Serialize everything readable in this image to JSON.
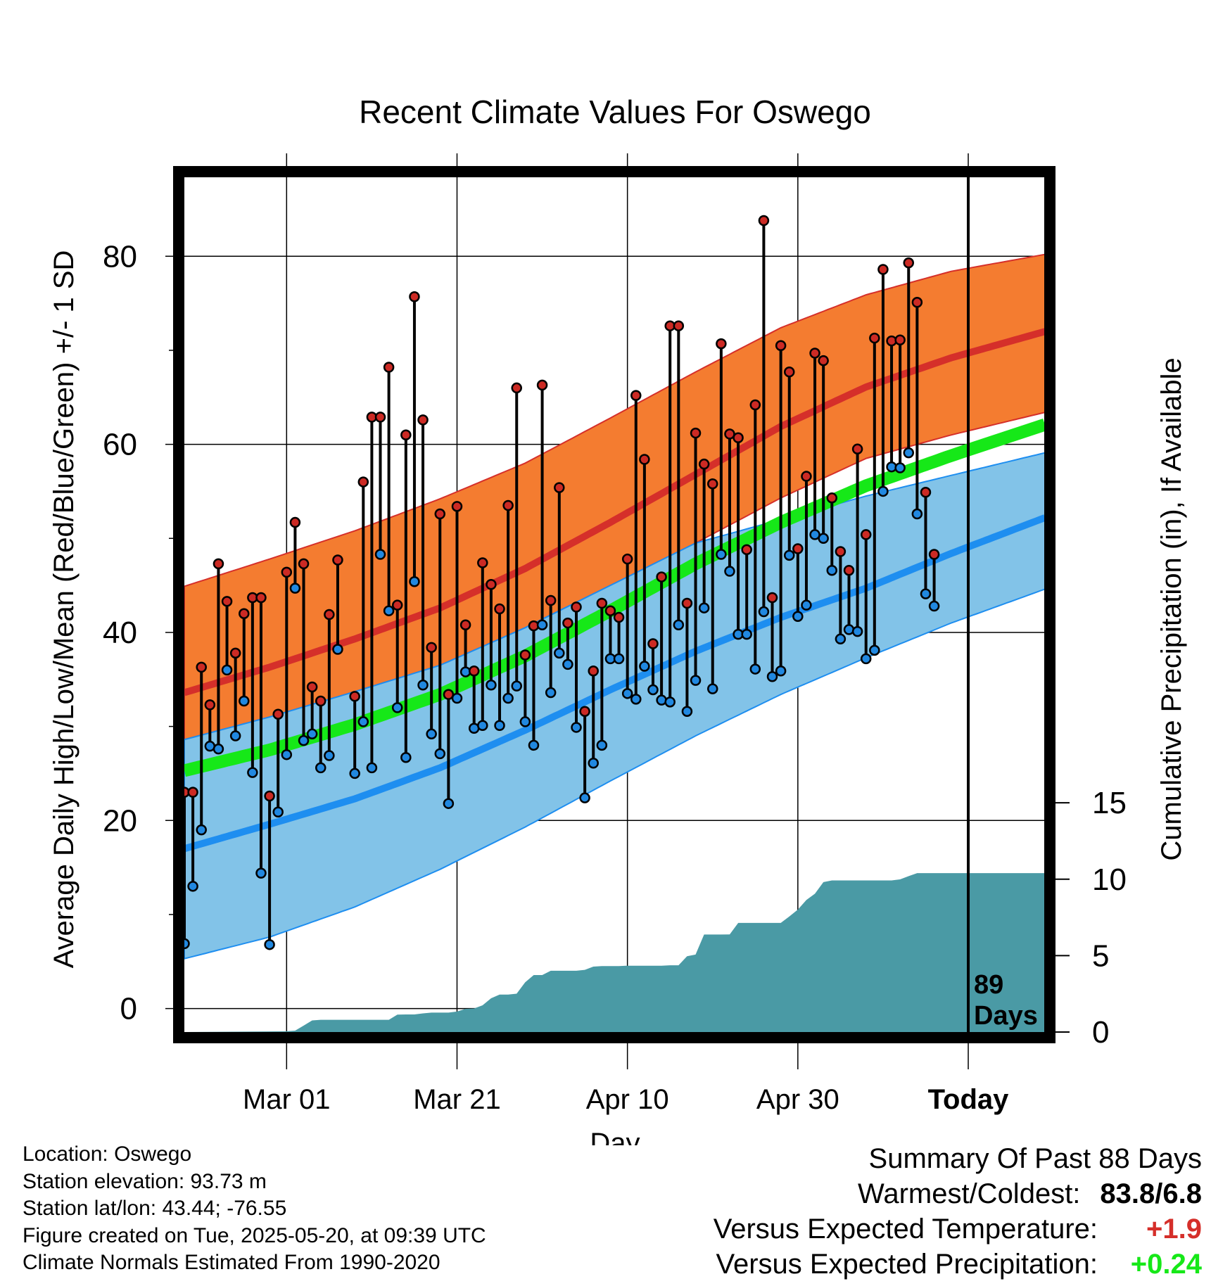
{
  "chart_data": {
    "type": "line",
    "title": "Recent Climate Values For Oswego",
    "xlabel": "Day",
    "ylabel": "Average Daily High/Low/Mean (Red/Blue/Green) +/- 1 SD",
    "y2label": "Cumulative Precipitation (in), If Available",
    "x_ticks": [
      "Mar 01",
      "Mar 21",
      "Apr 10",
      "Apr 30",
      "Today"
    ],
    "x_tick_days": [
      13,
      33,
      53,
      73,
      93
    ],
    "y_ticks": [
      "0",
      "20",
      "40",
      "60",
      "80"
    ],
    "y2_ticks": [
      "0",
      "5",
      "10",
      "15"
    ],
    "xlim": [
      1,
      102
    ],
    "ylim": [
      -2.5,
      89
    ],
    "y2lim": [
      0,
      56.3
    ],
    "today_label": "89\nDays",
    "grid": true,
    "normals": {
      "days": [
        1,
        11,
        21,
        31,
        41,
        51,
        61,
        71,
        81,
        91,
        102
      ],
      "high_mean": [
        33.6,
        36.3,
        39.3,
        42.6,
        46.8,
        51.7,
        56.8,
        61.9,
        66.1,
        69.2,
        72.0
      ],
      "high_plus_sd": [
        44.9,
        47.8,
        50.8,
        54.2,
        58.0,
        62.8,
        67.7,
        72.4,
        75.9,
        78.4,
        80.2
      ],
      "high_minus_sd": [
        28.6,
        31.0,
        33.7,
        36.5,
        40.5,
        45.0,
        49.5,
        54.3,
        58.5,
        61.0,
        63.4
      ],
      "low_mean": [
        17.0,
        19.6,
        22.3,
        25.6,
        29.6,
        33.9,
        38.0,
        41.6,
        44.7,
        48.4,
        52.2
      ],
      "low_plus_sd": [
        28.6,
        31.0,
        33.7,
        36.5,
        40.5,
        45.0,
        49.5,
        52.0,
        54.5,
        56.7,
        59.1
      ],
      "low_minus_sd": [
        5.3,
        7.6,
        10.8,
        14.8,
        19.3,
        24.2,
        29.0,
        33.4,
        37.3,
        41.0,
        44.6
      ],
      "mean_line": [
        25.3,
        27.5,
        30.2,
        33.4,
        37.5,
        42.3,
        47.3,
        51.7,
        55.6,
        58.8,
        62.1
      ]
    },
    "observed": {
      "days": [
        1,
        2,
        3,
        4,
        5,
        6,
        7,
        8,
        9,
        10,
        11,
        12,
        13,
        14,
        15,
        16,
        17,
        18,
        19,
        20,
        21,
        22,
        23,
        24,
        25,
        26,
        27,
        28,
        29,
        30,
        31,
        32,
        33,
        34,
        35,
        36,
        37,
        38,
        39,
        40,
        41,
        42,
        43,
        44,
        45,
        46,
        47,
        48,
        49,
        50,
        51,
        52,
        53,
        54,
        55,
        56,
        57,
        58,
        59,
        60,
        61,
        62,
        63,
        64,
        65,
        66,
        67,
        68,
        69,
        70,
        71,
        72,
        73,
        74,
        75,
        76,
        77,
        78,
        79,
        80,
        81,
        82,
        83,
        84,
        85,
        86,
        87,
        88,
        89
      ],
      "high": [
        23.0,
        23.0,
        36.3,
        32.3,
        47.3,
        43.3,
        37.8,
        42.0,
        43.7,
        43.7,
        22.6,
        31.3,
        46.4,
        51.7,
        47.3,
        34.2,
        32.7,
        41.9,
        47.7,
        null,
        33.2,
        56.0,
        62.9,
        62.9,
        68.2,
        42.9,
        61.0,
        75.7,
        62.6,
        38.4,
        52.6,
        33.4,
        53.4,
        40.8,
        35.9,
        47.4,
        45.1,
        42.5,
        53.5,
        66.0,
        37.6,
        40.7,
        66.3,
        43.4,
        55.4,
        41.0,
        42.7,
        31.6,
        35.9,
        43.1,
        42.3,
        41.6,
        47.8,
        65.2,
        58.4,
        38.8,
        45.9,
        72.6,
        72.6,
        43.1,
        61.2,
        57.9,
        55.8,
        70.7,
        61.1,
        60.7,
        48.8,
        64.2,
        83.8,
        43.7,
        70.5,
        67.7,
        48.9,
        56.6,
        69.7,
        68.9,
        54.3,
        48.6,
        46.6,
        59.5,
        50.4,
        71.3,
        78.6,
        71.0,
        71.1,
        79.3,
        75.1,
        54.9,
        48.3
      ],
      "low": [
        6.9,
        13.0,
        19.0,
        27.9,
        27.6,
        36.0,
        29.0,
        32.7,
        25.1,
        14.4,
        6.8,
        20.9,
        27.0,
        44.7,
        28.5,
        29.2,
        25.6,
        26.9,
        38.2,
        null,
        25.0,
        30.5,
        25.6,
        48.3,
        42.3,
        32.0,
        26.7,
        45.4,
        34.4,
        29.2,
        27.1,
        21.8,
        33.0,
        35.8,
        29.8,
        30.1,
        34.4,
        30.1,
        33.0,
        34.3,
        30.5,
        28.0,
        40.8,
        33.6,
        37.8,
        36.6,
        29.9,
        22.4,
        26.1,
        28.0,
        37.2,
        37.2,
        33.5,
        32.9,
        36.4,
        33.9,
        32.8,
        32.6,
        40.8,
        31.6,
        34.9,
        42.6,
        34.0,
        48.3,
        46.5,
        39.8,
        39.8,
        36.1,
        42.2,
        35.3,
        35.9,
        48.2,
        41.7,
        42.9,
        50.4,
        50.0,
        46.6,
        39.3,
        40.3,
        40.1,
        37.2,
        38.1,
        55.0,
        57.6,
        57.5,
        59.1,
        52.6,
        44.1,
        42.8
      ]
    },
    "precip_cumulative": {
      "days": [
        1,
        13,
        14,
        15,
        16,
        17,
        18,
        19,
        20,
        21,
        22,
        23,
        24,
        25,
        26,
        27,
        28,
        29,
        30,
        31,
        32,
        33,
        34,
        35,
        36,
        37,
        38,
        39,
        40,
        41,
        42,
        43,
        44,
        45,
        46,
        47,
        48,
        49,
        50,
        51,
        52,
        53,
        54,
        55,
        56,
        57,
        58,
        59,
        60,
        61,
        62,
        63,
        64,
        65,
        66,
        67,
        68,
        69,
        70,
        71,
        72,
        73,
        74,
        75,
        76,
        77,
        78,
        79,
        80,
        81,
        82,
        83,
        84,
        85,
        86,
        87,
        88,
        89,
        102
      ],
      "values": [
        0.0,
        0.05,
        0.09,
        0.42,
        0.76,
        0.8,
        0.8,
        0.8,
        0.8,
        0.8,
        0.8,
        0.8,
        0.8,
        0.8,
        1.14,
        1.15,
        1.15,
        1.22,
        1.27,
        1.27,
        1.27,
        1.34,
        1.52,
        1.54,
        1.75,
        2.21,
        2.45,
        2.45,
        2.51,
        3.26,
        3.73,
        3.73,
        4.01,
        4.01,
        4.01,
        4.01,
        4.07,
        4.28,
        4.32,
        4.32,
        4.32,
        4.34,
        4.34,
        4.34,
        4.34,
        4.34,
        4.37,
        4.37,
        4.96,
        5.07,
        6.38,
        6.38,
        6.38,
        6.39,
        7.14,
        7.14,
        7.14,
        7.14,
        7.14,
        7.14,
        7.56,
        8.01,
        8.64,
        9.05,
        9.81,
        9.92,
        9.92,
        9.92,
        9.92,
        9.92,
        9.92,
        9.92,
        9.92,
        9.99,
        10.2,
        10.4,
        10.4,
        10.4,
        10.4
      ]
    },
    "colors": {
      "high_band": "#f47c30",
      "high_line": "#d52f2a",
      "low_band": "#82c3e8",
      "low_line": "#1e8ef0",
      "mean_band": "#16e818",
      "overlap": "#9b1a18",
      "precip": "#4a9aa5",
      "high_marker": "#cc2a24",
      "low_marker": "#2188e0"
    }
  },
  "footer": {
    "location": "Location: Oswego",
    "elevation": "Station elevation: 93.73 m",
    "latlon": "Station lat/lon: 43.44; -76.55",
    "created": "Figure created on Tue, 2025-05-20, at 09:39 UTC",
    "normals": "Climate Normals Estimated From 1990-2020"
  },
  "summary": {
    "title": "Summary Of Past 88 Days",
    "warmest_label": "Warmest/Coldest:",
    "warmest_value": "83.8/6.8",
    "temp_label": "Versus Expected Temperature:",
    "temp_value": "+1.9",
    "temp_color": "#d52f2a",
    "precip_label": "Versus Expected Precipitation:",
    "precip_value": "+0.24",
    "precip_color": "#16e818"
  }
}
